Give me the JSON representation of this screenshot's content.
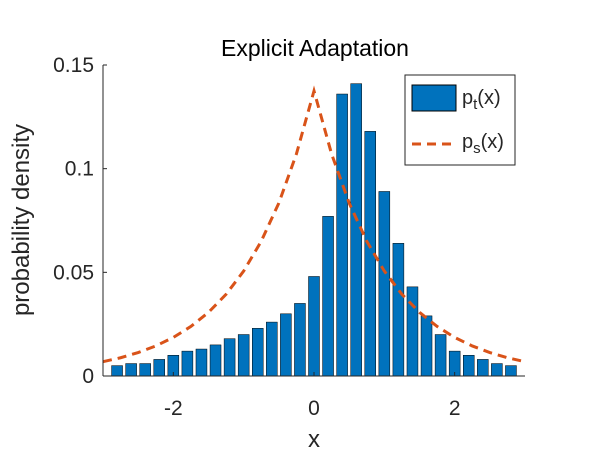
{
  "chart_data": {
    "type": "bar",
    "title": "Explicit Adaptation",
    "xlabel": "x",
    "ylabel": "probability density",
    "xlim": [
      -3,
      3
    ],
    "ylim": [
      0,
      0.15
    ],
    "xticks": [
      -2,
      0,
      2
    ],
    "xtick_labels": [
      "-2",
      "0",
      "2"
    ],
    "yticks": [
      0,
      0.05,
      0.1,
      0.15
    ],
    "ytick_labels": [
      "0",
      "0.05",
      "0.1",
      "0.15"
    ],
    "grid": false,
    "legend_placement": "top-right",
    "series": [
      {
        "name": "p_t(x)",
        "legend_main": "p",
        "legend_sub": "t",
        "legend_tail": "(x)",
        "kind": "bar",
        "color": "#0072BD",
        "edge_color": "#000000",
        "bin_width": 0.2,
        "x": [
          -2.8,
          -2.6,
          -2.4,
          -2.2,
          -2.0,
          -1.8,
          -1.6,
          -1.4,
          -1.2,
          -1.0,
          -0.8,
          -0.6,
          -0.4,
          -0.2,
          0.0,
          0.2,
          0.4,
          0.6,
          0.8,
          1.0,
          1.2,
          1.4,
          1.6,
          1.8,
          2.0,
          2.2,
          2.4,
          2.6,
          2.8
        ],
        "values": [
          0.005,
          0.006,
          0.006,
          0.008,
          0.01,
          0.012,
          0.013,
          0.015,
          0.018,
          0.02,
          0.023,
          0.026,
          0.03,
          0.035,
          0.048,
          0.077,
          0.136,
          0.141,
          0.118,
          0.089,
          0.064,
          0.043,
          0.029,
          0.02,
          0.012,
          0.01,
          0.008,
          0.006,
          0.005
        ]
      },
      {
        "name": "p_s(x)",
        "legend_main": "p",
        "legend_sub": "s",
        "legend_tail": "(x)",
        "kind": "line",
        "style": "dashed",
        "color": "#D95319",
        "x": [
          -3.0,
          -2.75,
          -2.5,
          -2.25,
          -2.0,
          -1.75,
          -1.5,
          -1.25,
          -1.0,
          -0.75,
          -0.5,
          -0.25,
          0.0,
          0.25,
          0.5,
          0.75,
          1.0,
          1.25,
          1.5,
          1.75,
          2.0,
          2.25,
          2.5,
          2.75,
          3.0
        ],
        "values": [
          0.0069,
          0.0088,
          0.0113,
          0.0145,
          0.0186,
          0.0239,
          0.0307,
          0.0394,
          0.0506,
          0.065,
          0.0834,
          0.1071,
          0.1375,
          0.1071,
          0.0834,
          0.065,
          0.0506,
          0.0394,
          0.0307,
          0.0239,
          0.0186,
          0.0145,
          0.0113,
          0.0088,
          0.0069
        ]
      }
    ]
  }
}
